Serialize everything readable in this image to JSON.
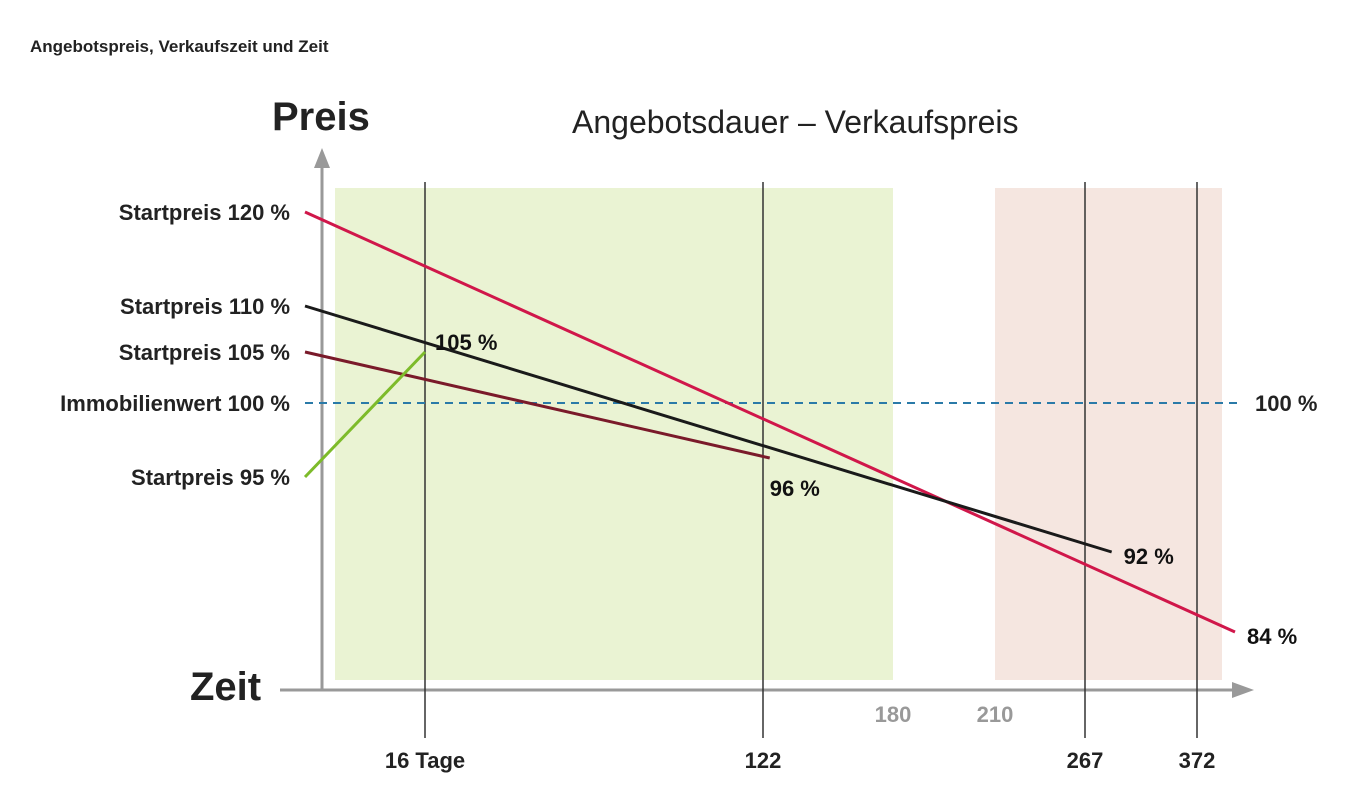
{
  "chart_data": {
    "type": "line",
    "title": "Angebotspreis, Verkaufszeit und Zeit",
    "subtitle": "Angebotsdauer – Verkaufspreis",
    "ylabel": "Preis",
    "xlabel": "Zeit",
    "x_ticks_major": [
      "16 Tage",
      "122",
      "267",
      "372"
    ],
    "x_ticks_minor": [
      "180",
      "210"
    ],
    "x_tick_days": {
      "16 Tage": 16,
      "122": 122,
      "180": 180,
      "210": 210,
      "267": 267,
      "372": 372
    },
    "reference": {
      "label": "Immobilienwert 100 %",
      "value": 100,
      "end_label": "100 %",
      "color": "#2a7aa8"
    },
    "series": [
      {
        "name": "Startpreis 120 %",
        "color": "#d0174a",
        "start": {
          "day": 0,
          "value": 120
        },
        "end": {
          "day": 400,
          "value": 84
        },
        "end_label": "84 %"
      },
      {
        "name": "Startpreis 110 %",
        "color": "#1a1a1a",
        "start": {
          "day": 0,
          "value": 110
        },
        "end": {
          "day": 292,
          "value": 92
        },
        "end_label": "92 %"
      },
      {
        "name": "Startpreis 105 %",
        "color": "#7a1a2a",
        "start": {
          "day": 0,
          "value": 105
        },
        "end": {
          "day": 125,
          "value": 96
        },
        "end_label": "96 %"
      },
      {
        "name": "Startpreis 95 %",
        "color": "#7dbb2a",
        "start": {
          "day": 0,
          "value": 95
        },
        "end": {
          "day": 16,
          "value": 105
        },
        "end_label": "105 %"
      }
    ],
    "bands": [
      {
        "from_day": 2,
        "to_day": 180,
        "color": "#eaf3d3"
      },
      {
        "from_day": 210,
        "to_day": 380,
        "color": "#f5e6e0"
      }
    ]
  }
}
